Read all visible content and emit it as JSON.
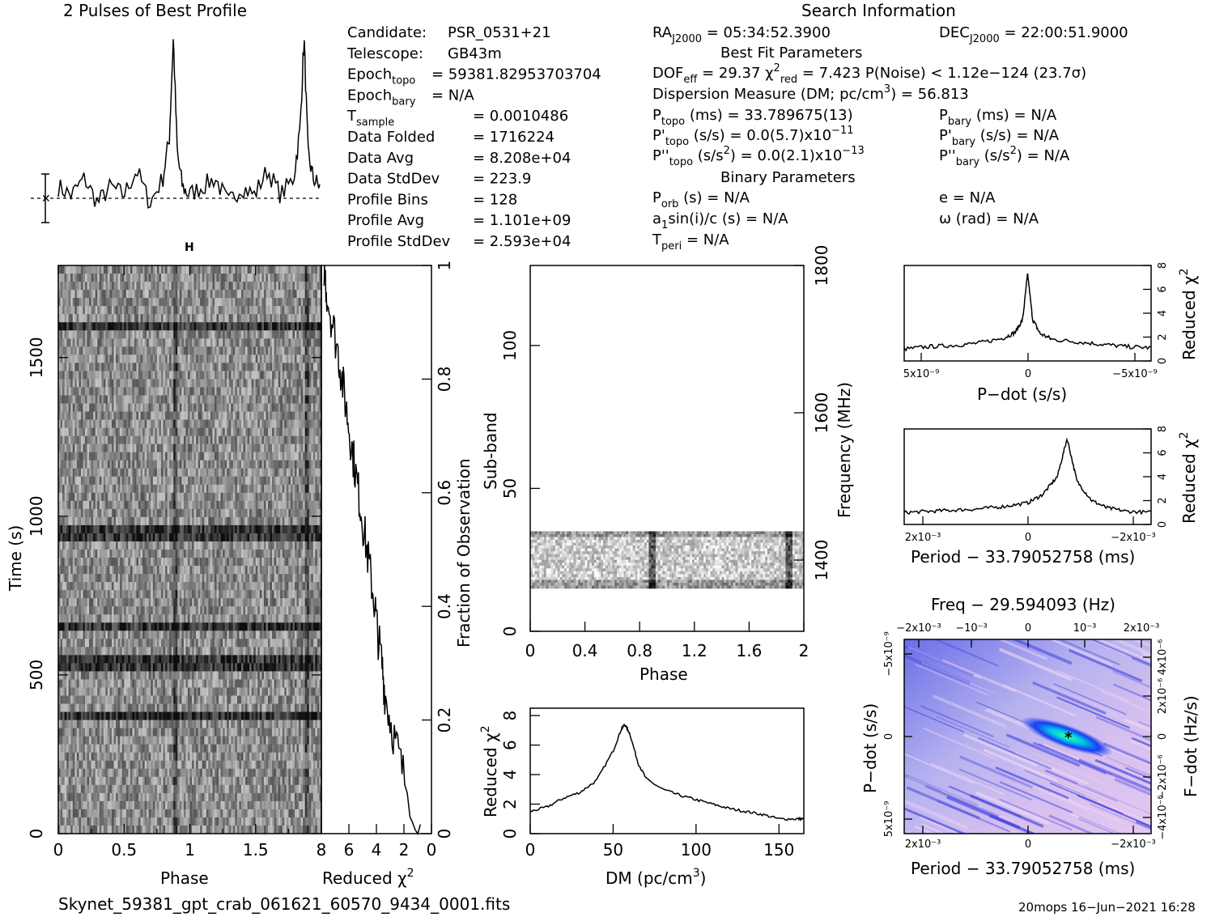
{
  "profile": {
    "title": "2 Pulses of Best Profile",
    "peak_phases": [
      0.88,
      1.88
    ]
  },
  "candidate_info": {
    "lines": [
      {
        "label": "Candidate:",
        "sub": "",
        "value": "PSR_0531+21"
      },
      {
        "label": "Telescope:",
        "sub": "",
        "value": "GB43m"
      },
      {
        "label": "Epoch",
        "sub": "topo",
        "value": "= 59381.82953703704"
      },
      {
        "label": "Epoch",
        "sub": "bary",
        "value": "= N/A"
      },
      {
        "label": "T",
        "sub": "sample",
        "value": "=   0.0010486"
      },
      {
        "label": "Data Folded",
        "sub": "",
        "value": "=   1716224"
      },
      {
        "label": "Data Avg",
        "sub": "",
        "value": "=   8.208e+04"
      },
      {
        "label": "Data StdDev",
        "sub": "",
        "value": "=   223.9"
      },
      {
        "label": "Profile Bins",
        "sub": "",
        "value": "=   128"
      },
      {
        "label": "Profile Avg",
        "sub": "",
        "value": "=   1.101e+09"
      },
      {
        "label": "Profile StdDev",
        "sub": "",
        "value": "=   2.593e+04"
      }
    ]
  },
  "search_info": {
    "title": "Search Information",
    "ra": "RA J2000 = 05:34:52.3900",
    "dec": "DEC J2000 = 22:00:51.9000",
    "best_fit_title": "Best Fit Parameters",
    "dof": "DOF eff = 29.37  χ² red = 7.423  P(Noise) < 1.12e−124  (23.7σ)",
    "dm": "Dispersion Measure (DM; pc/cm³) = 56.813",
    "p_topo": "P topo (ms) =  33.789675(13)",
    "p_bary": "P bary (ms) = N/A",
    "pd_topo": "P' topo (s/s) = 0.0(5.7)x10⁻¹¹",
    "pd_bary": "P' bary (s/s) = N/A",
    "pdd_topo": "P'' topo (s/s²) = 0.0(2.1)x10⁻¹³",
    "pdd_bary": "P'' bary (s/s²) = N/A",
    "binary_title": "Binary Parameters",
    "p_orb": "P orb (s) = N/A",
    "e": "e = N/A",
    "a1": "a1 sin(i)/c (s) = N/A",
    "omega": "ω (rad) = N/A",
    "t_peri": "T peri = N/A"
  },
  "time_phase": {
    "xlabel": "Phase",
    "ylabel": "Time (s)",
    "xticks": [
      "0",
      "0.5",
      "1",
      "1.5"
    ],
    "yticks": [
      "0",
      "500",
      "1000",
      "1500"
    ],
    "xlim": [
      0,
      2
    ],
    "ylim": [
      0,
      1790
    ]
  },
  "chi_vs_time": {
    "xlabel": "Reduced χ²",
    "right_label": "Fraction of Observation",
    "xticks": [
      "8",
      "6",
      "4",
      "2",
      "0"
    ],
    "yticks": [
      "0",
      "0.2",
      "0.4",
      "0.6",
      "0.8",
      "1"
    ],
    "xlim": [
      8,
      0
    ]
  },
  "subband": {
    "xlabel": "Phase",
    "ylabel": "Sub-band",
    "right_label": "Frequency (MHz)",
    "xticks": [
      "0",
      "0.4",
      "0.8",
      "1.2",
      "1.6",
      "2"
    ],
    "yticks": [
      "0",
      "50",
      "100"
    ],
    "rticks": [
      "1400",
      "1600",
      "1800"
    ],
    "ylim": [
      0,
      128
    ],
    "data_band": [
      15,
      35
    ]
  },
  "dm_curve": {
    "xlabel": "DM (pc/cm³)",
    "ylabel": "Reduced χ²",
    "xticks": [
      "0",
      "50",
      "100",
      "150"
    ],
    "yticks": [
      "0",
      "2",
      "4",
      "6",
      "8"
    ],
    "xlim": [
      0,
      165
    ],
    "ylim": [
      0,
      8.5
    ]
  },
  "pdot_curve": {
    "xlabel": "P−dot (s/s)",
    "ylabel": "Reduced χ²",
    "xticks": [
      "5x10⁻⁹",
      "0",
      "−5x10⁻⁹"
    ],
    "yticks": [
      "0",
      "2",
      "4",
      "6",
      "8"
    ]
  },
  "period_curve": {
    "xlabel": "Period − 33.79052758 (ms)",
    "ylabel": "Reduced χ²",
    "xticks": [
      "2x10⁻³",
      "0",
      "−2x10⁻³"
    ],
    "yticks": [
      "0",
      "2",
      "4",
      "6",
      "8"
    ]
  },
  "ppdot": {
    "title": "Freq − 29.594093 (Hz)",
    "xlabel": "Period − 33.79052758 (ms)",
    "ylabel": "P−dot (s/s)",
    "right_label": "F−dot (Hz/s)",
    "top_ticks": [
      "−2x10⁻³",
      "−10⁻³",
      "0",
      "10⁻³",
      "2x10⁻³"
    ],
    "bottom_ticks": [
      "2x10⁻³",
      "0",
      "−2x10⁻³"
    ],
    "left_ticks": [
      "−5x10⁻⁹",
      "0",
      "5x10⁻⁹"
    ],
    "right_ticks": [
      "4x10⁻⁶",
      "2x10⁻⁶",
      "0",
      "−2x10⁻⁶",
      "−4x10⁻⁶"
    ]
  },
  "chart_data": [
    {
      "type": "line",
      "title": "2 Pulses of Best Profile",
      "xlabel": "",
      "ylabel": "",
      "x": [
        0,
        0.1,
        0.2,
        0.3,
        0.4,
        0.5,
        0.6,
        0.7,
        0.8,
        0.85,
        0.88,
        0.91,
        0.95,
        1.0,
        1.1,
        1.2,
        1.3,
        1.4,
        1.5,
        1.6,
        1.7,
        1.8,
        1.85,
        1.88,
        1.91,
        1.95,
        2.0
      ],
      "series": [
        {
          "values": [
            0.1,
            0.05,
            0.15,
            0.0,
            0.1,
            0.05,
            0.2,
            0.0,
            0.15,
            0.4,
            1.0,
            0.3,
            0.1,
            0.05,
            0.1,
            0.15,
            0.0,
            0.1,
            0.05,
            0.2,
            0.05,
            0.15,
            0.45,
            1.0,
            0.3,
            0.15,
            0.1
          ]
        }
      ]
    },
    {
      "type": "line",
      "xlabel": "DM (pc/cm³)",
      "ylabel": "Reduced χ²",
      "x": [
        0,
        10,
        20,
        30,
        40,
        50,
        55,
        57,
        60,
        65,
        70,
        80,
        90,
        100,
        110,
        120,
        130,
        140,
        150,
        160,
        165
      ],
      "series": [
        {
          "values": [
            1.5,
            1.8,
            2.4,
            2.8,
            3.6,
            5.6,
            7.1,
            7.4,
            6.8,
            4.8,
            3.7,
            3.0,
            2.6,
            2.3,
            2.0,
            1.7,
            1.5,
            1.3,
            1.0,
            1.0,
            1.0
          ]
        }
      ],
      "xlim": [
        0,
        165
      ],
      "ylim": [
        0,
        8.5
      ]
    },
    {
      "type": "line",
      "xlabel": "P−dot (s/s)",
      "ylabel": "Reduced χ²",
      "x": [
        5e-09,
        4e-09,
        3e-09,
        2e-09,
        1e-09,
        5e-10,
        2e-10,
        0,
        -2e-10,
        -5e-10,
        -1e-09,
        -2e-09,
        -3e-09,
        -4e-09,
        -5e-09
      ],
      "series": [
        {
          "values": [
            1.0,
            1.2,
            1.3,
            1.5,
            1.9,
            2.4,
            3.5,
            7.3,
            3.5,
            2.3,
            1.8,
            1.6,
            1.4,
            1.2,
            1.1
          ]
        }
      ],
      "ylim": [
        0,
        8
      ]
    },
    {
      "type": "line",
      "xlabel": "Period − 33.79052758 (ms)",
      "ylabel": "Reduced χ²",
      "x": [
        0.0025,
        0.002,
        0.0015,
        0.001,
        0.0005,
        0,
        -0.0003,
        -0.0006,
        -0.0008,
        -0.001,
        -0.0013,
        -0.0016,
        -0.002,
        -0.0025
      ],
      "series": [
        {
          "values": [
            1.0,
            1.1,
            1.2,
            1.3,
            1.5,
            1.8,
            2.5,
            4.0,
            7.2,
            3.6,
            2.0,
            1.4,
            1.1,
            1.0
          ]
        }
      ],
      "ylim": [
        0,
        8
      ]
    },
    {
      "type": "line",
      "xlabel": "Phase",
      "ylabel": "Fraction of Observation",
      "note_axis": "Reduced χ² vs fraction",
      "x": [
        7.8,
        7.6,
        7.2,
        6.8,
        6.5,
        6.2,
        5.9,
        5.6,
        5.3,
        5.0,
        4.7,
        4.4,
        4.1,
        3.9,
        3.6,
        3.4,
        3.0,
        2.5,
        2.0,
        0.8
      ],
      "series": [
        {
          "values": [
            1.0,
            0.95,
            0.9,
            0.85,
            0.8,
            0.75,
            0.7,
            0.65,
            0.6,
            0.55,
            0.5,
            0.45,
            0.4,
            0.35,
            0.3,
            0.25,
            0.2,
            0.15,
            0.1,
            0.01
          ]
        }
      ]
    },
    {
      "type": "heatmap",
      "title": "",
      "xlabel": "Phase",
      "ylabel": "Time (s)",
      "xlim": [
        0,
        2
      ],
      "ylim": [
        0,
        1790
      ]
    },
    {
      "type": "heatmap",
      "xlabel": "Phase",
      "ylabel": "Sub-band",
      "xlim": [
        0,
        2
      ],
      "ylim": [
        0,
        128
      ]
    },
    {
      "type": "heatmap",
      "title": "Freq − 29.594093 (Hz)",
      "xlabel": "Period − 33.79052758 (ms)",
      "ylabel": "P−dot (s/s)"
    }
  ],
  "footer": {
    "filename": "Skynet_59381_gpt_crab_061621_60570_9434_0001.fits",
    "stamp": "20mops 16−Jun−2021 16:28"
  }
}
